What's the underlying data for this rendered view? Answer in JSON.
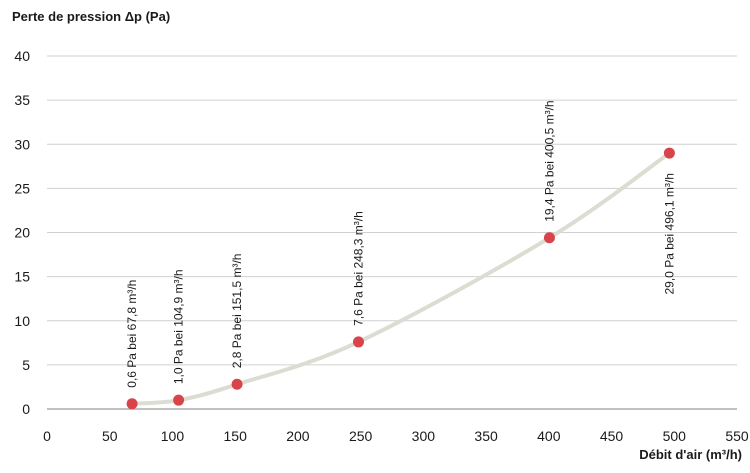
{
  "chart_data": {
    "type": "scatter",
    "title": "",
    "ylabel": "Perte de pression Δp (Pa)",
    "xlabel": "Débit d'air (m³/h)",
    "xlim": [
      0,
      550
    ],
    "ylim": [
      0,
      40
    ],
    "xticks": [
      0,
      50,
      100,
      150,
      200,
      250,
      300,
      350,
      400,
      450,
      500,
      550
    ],
    "yticks": [
      0,
      5,
      10,
      15,
      20,
      25,
      30,
      35,
      40
    ],
    "grid": "horizontal",
    "legend": "none",
    "points": [
      {
        "x": 67.8,
        "y": 0.6,
        "label": "0,6 Pa bei 67,8 m³/h"
      },
      {
        "x": 104.9,
        "y": 1.0,
        "label": "1,0 Pa bei 104,9 m³/h"
      },
      {
        "x": 151.5,
        "y": 2.8,
        "label": "2,8 Pa bei 151,5 m³/h"
      },
      {
        "x": 248.3,
        "y": 7.6,
        "label": "7,6 Pa bei 248,3 m³/h"
      },
      {
        "x": 400.5,
        "y": 19.4,
        "label": "19,4 Pa bei 400,5 m³/h"
      },
      {
        "x": 496.1,
        "y": 29.0,
        "label": "29,0 Pa bei 496,1 m³/h"
      }
    ],
    "colors": {
      "point": "#d9434a",
      "curve": "#dcdcd2",
      "grid": "#d0d0d0",
      "axis": "#9a9a9a"
    }
  }
}
